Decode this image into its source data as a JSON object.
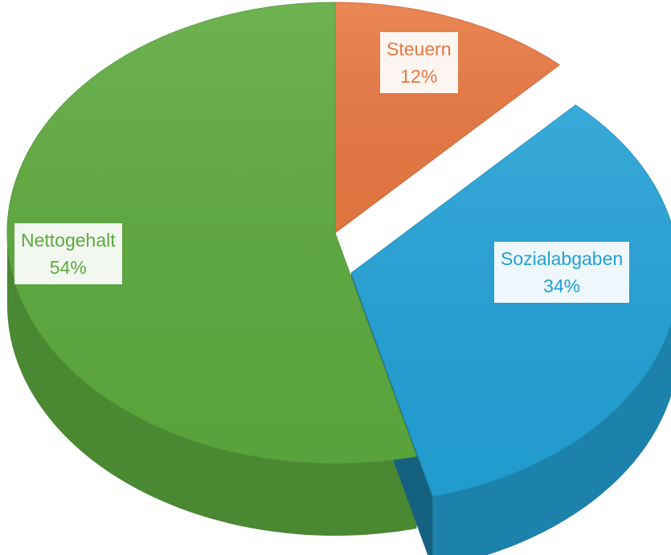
{
  "chart_data": {
    "type": "pie",
    "style": "3d",
    "slices": [
      {
        "label": "Steuern",
        "value": 12,
        "value_label": "12%",
        "color": "#E87842"
      },
      {
        "label": "Sozialabgaben",
        "value": 34,
        "value_label": "34%",
        "color": "#23A1D6"
      },
      {
        "label": "Nettogehalt",
        "value": 54,
        "value_label": "54%",
        "color": "#5DAA3E"
      }
    ],
    "start_angle": "12 o'clock, clockwise",
    "explode": "Sozialabgaben",
    "legend": "none"
  }
}
